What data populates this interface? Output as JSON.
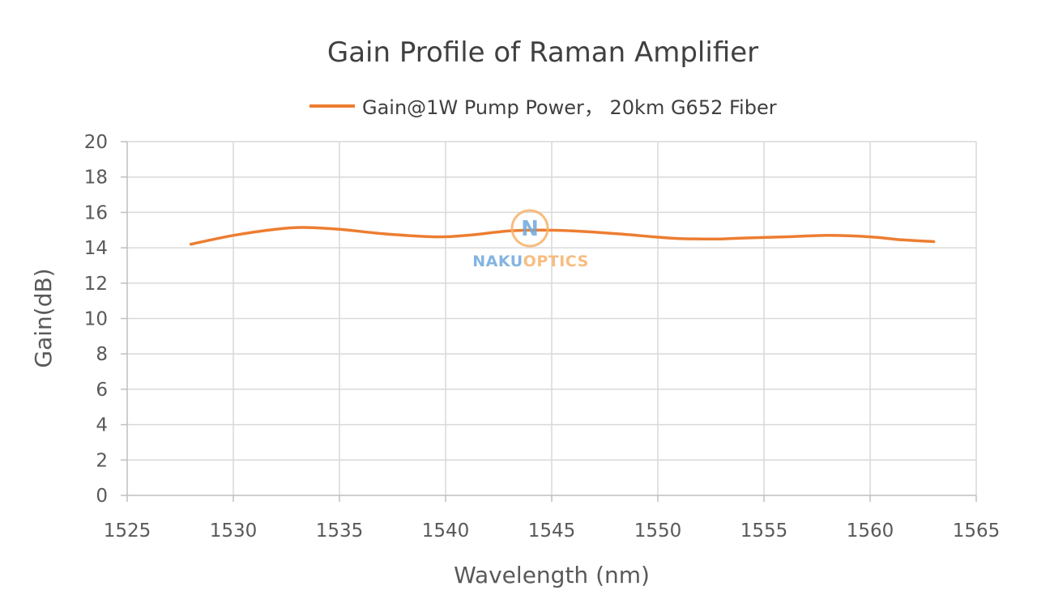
{
  "chart_data": {
    "type": "line",
    "title": "Gain Profile of Raman Amplifier",
    "xlabel": "Wavelength (nm)",
    "ylabel": "Gain(dB)",
    "xlim": [
      1525,
      1565
    ],
    "ylim": [
      0,
      20
    ],
    "x_ticks": [
      "1525",
      "1530",
      "1535",
      "1540",
      "1545",
      "1550",
      "1555",
      "1560",
      "1565"
    ],
    "y_ticks": [
      "0",
      "2",
      "4",
      "6",
      "8",
      "10",
      "12",
      "14",
      "16",
      "18",
      "20"
    ],
    "grid": true,
    "legend_position": "top",
    "series": [
      {
        "name": "Gain@1W Pump Power， 20km G652 Fiber",
        "color": "#ED7D31",
        "x": [
          1528,
          1530,
          1532,
          1533.3,
          1535,
          1537,
          1539.5,
          1541,
          1543,
          1544.5,
          1546,
          1548,
          1550,
          1551,
          1552,
          1553,
          1554,
          1556,
          1558,
          1560,
          1561.5,
          1563
        ],
        "y": [
          14.2,
          14.7,
          15.05,
          15.15,
          15.05,
          14.8,
          14.62,
          14.7,
          14.95,
          15.0,
          14.95,
          14.8,
          14.6,
          14.52,
          14.5,
          14.5,
          14.55,
          14.62,
          14.7,
          14.62,
          14.45,
          14.35
        ]
      }
    ]
  },
  "watermark": {
    "letter": "N",
    "text_part1": "NAKU",
    "text_part2": "OPTICS",
    "color1": "#6FA8DC",
    "color2": "#F6B26B"
  }
}
